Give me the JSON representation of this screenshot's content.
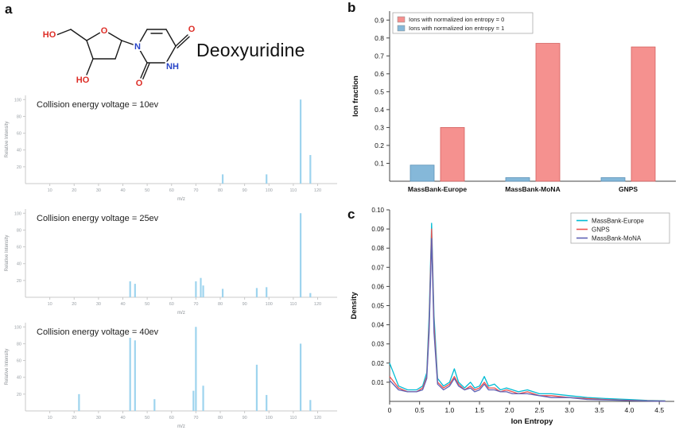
{
  "figure": {
    "panel_a_label": "a",
    "panel_b_label": "b",
    "panel_c_label": "c"
  },
  "molecule": {
    "name": "Deoxyuridine",
    "labels": {
      "ho_chain": "HO",
      "ho_ring": "HO",
      "ring_o": "O",
      "n1": "N",
      "nh": "NH",
      "o_top": "O",
      "o_bottom": "O"
    }
  },
  "chart_data": [
    {
      "id": "spectrum-10ev",
      "type": "bar",
      "variant": "mass-spectrum",
      "title": "Collision energy voltage =  10ev",
      "xlabel": "m/z",
      "ylabel": "Relative Intensity",
      "xlim": [
        0,
        128
      ],
      "ylim": [
        0,
        105
      ],
      "xticks": [
        10,
        20,
        30,
        40,
        50,
        60,
        70,
        80,
        90,
        100,
        110,
        120
      ],
      "yticks": [
        20,
        40,
        60,
        80,
        100
      ],
      "bar_color": "#9ed4ee",
      "peaks": [
        [
          81,
          11
        ],
        [
          99,
          11
        ],
        [
          113,
          100
        ],
        [
          117,
          34
        ]
      ]
    },
    {
      "id": "spectrum-25ev",
      "type": "bar",
      "variant": "mass-spectrum",
      "title": "Collision energy voltage =  25ev",
      "xlabel": "m/z",
      "ylabel": "Relative Intensity",
      "xlim": [
        0,
        128
      ],
      "ylim": [
        0,
        105
      ],
      "xticks": [
        10,
        20,
        30,
        40,
        50,
        60,
        70,
        80,
        90,
        100,
        110,
        120
      ],
      "yticks": [
        20,
        40,
        60,
        80,
        100
      ],
      "bar_color": "#9ed4ee",
      "peaks": [
        [
          43,
          19
        ],
        [
          45,
          16
        ],
        [
          70,
          19
        ],
        [
          72,
          23
        ],
        [
          73,
          14
        ],
        [
          81,
          10
        ],
        [
          95,
          11
        ],
        [
          99,
          12
        ],
        [
          113,
          100
        ],
        [
          117,
          5
        ]
      ]
    },
    {
      "id": "spectrum-40ev",
      "type": "bar",
      "variant": "mass-spectrum",
      "title": "Collision energy voltage =  40ev",
      "xlabel": "m/z",
      "ylabel": "Relative Intensity",
      "xlim": [
        0,
        128
      ],
      "ylim": [
        0,
        105
      ],
      "xticks": [
        10,
        20,
        30,
        40,
        50,
        60,
        70,
        80,
        90,
        100,
        110,
        120
      ],
      "yticks": [
        20,
        40,
        60,
        80,
        100
      ],
      "bar_color": "#9ed4ee",
      "peaks": [
        [
          22,
          20
        ],
        [
          43,
          87
        ],
        [
          45,
          84
        ],
        [
          53,
          14
        ],
        [
          69,
          24
        ],
        [
          70,
          100
        ],
        [
          73,
          30
        ],
        [
          95,
          55
        ],
        [
          99,
          19
        ],
        [
          113,
          80
        ],
        [
          117,
          13
        ]
      ]
    },
    {
      "id": "ion-fraction-bar",
      "type": "bar",
      "variant": "grouped-bar",
      "categories": [
        "MassBank-Europe",
        "MassBank-MoNA",
        "GNPS"
      ],
      "series": [
        {
          "name": "Ions with normalized ion entropy = 1",
          "color": "#85b8d9",
          "edge": "#5d93b8",
          "values": [
            0.09,
            0.02,
            0.02
          ]
        },
        {
          "name": "Ions with normalized ion entropy = 0",
          "color": "#f5918f",
          "edge": "#d4605e",
          "values": [
            0.3,
            0.77,
            0.75
          ]
        }
      ],
      "legend": [
        {
          "label": "Ions with normalized ion entropy = 0",
          "color": "#f5918f"
        },
        {
          "label": "Ions with normalized ion entropy = 1",
          "color": "#85b8d9"
        }
      ],
      "ylabel": "Ion fraction",
      "ylim": [
        0,
        0.95
      ],
      "yticks": [
        0.1,
        0.2,
        0.3,
        0.4,
        0.5,
        0.6,
        0.7,
        0.8,
        0.9
      ],
      "legend_position": "top-left",
      "grid": false
    },
    {
      "id": "ion-entropy-density",
      "type": "line",
      "variant": "density",
      "xlabel": "Ion Entropy",
      "ylabel": "Density",
      "xlim": [
        0,
        4.75
      ],
      "ylim": [
        0,
        0.1
      ],
      "xticks": [
        0,
        0.5,
        1.0,
        1.5,
        2.0,
        2.5,
        3.0,
        3.5,
        4.0,
        4.5
      ],
      "yticks": [
        0.01,
        0.02,
        0.03,
        0.04,
        0.05,
        0.06,
        0.07,
        0.08,
        0.09,
        0.1
      ],
      "legend_position": "top-right",
      "grid": false,
      "series": [
        {
          "name": "MassBank-Europe",
          "color": "#00bcd4",
          "points": [
            [
              0,
              0.02
            ],
            [
              0.15,
              0.008
            ],
            [
              0.3,
              0.006
            ],
            [
              0.45,
              0.006
            ],
            [
              0.55,
              0.008
            ],
            [
              0.62,
              0.015
            ],
            [
              0.66,
              0.045
            ],
            [
              0.7,
              0.093
            ],
            [
              0.74,
              0.045
            ],
            [
              0.8,
              0.012
            ],
            [
              0.9,
              0.008
            ],
            [
              1.0,
              0.01
            ],
            [
              1.08,
              0.017
            ],
            [
              1.15,
              0.01
            ],
            [
              1.25,
              0.007
            ],
            [
              1.35,
              0.01
            ],
            [
              1.42,
              0.007
            ],
            [
              1.5,
              0.008
            ],
            [
              1.58,
              0.013
            ],
            [
              1.65,
              0.008
            ],
            [
              1.75,
              0.009
            ],
            [
              1.85,
              0.006
            ],
            [
              1.95,
              0.007
            ],
            [
              2.05,
              0.006
            ],
            [
              2.15,
              0.005
            ],
            [
              2.3,
              0.006
            ],
            [
              2.5,
              0.004
            ],
            [
              2.7,
              0.004
            ],
            [
              3.0,
              0.003
            ],
            [
              3.3,
              0.002
            ],
            [
              3.6,
              0.0015
            ],
            [
              4.0,
              0.001
            ],
            [
              4.3,
              0.0005
            ],
            [
              4.6,
              0.0003
            ]
          ]
        },
        {
          "name": "GNPS",
          "color": "#ef5350",
          "points": [
            [
              0,
              0.013
            ],
            [
              0.15,
              0.007
            ],
            [
              0.3,
              0.005
            ],
            [
              0.45,
              0.005
            ],
            [
              0.55,
              0.007
            ],
            [
              0.62,
              0.013
            ],
            [
              0.66,
              0.04
            ],
            [
              0.7,
              0.09
            ],
            [
              0.74,
              0.04
            ],
            [
              0.8,
              0.01
            ],
            [
              0.9,
              0.007
            ],
            [
              1.0,
              0.009
            ],
            [
              1.08,
              0.013
            ],
            [
              1.15,
              0.009
            ],
            [
              1.25,
              0.006
            ],
            [
              1.35,
              0.008
            ],
            [
              1.42,
              0.006
            ],
            [
              1.5,
              0.007
            ],
            [
              1.58,
              0.01
            ],
            [
              1.65,
              0.007
            ],
            [
              1.75,
              0.007
            ],
            [
              1.85,
              0.005
            ],
            [
              1.95,
              0.006
            ],
            [
              2.05,
              0.005
            ],
            [
              2.15,
              0.004
            ],
            [
              2.3,
              0.005
            ],
            [
              2.5,
              0.003
            ],
            [
              2.7,
              0.003
            ],
            [
              3.0,
              0.002
            ],
            [
              3.3,
              0.0015
            ],
            [
              3.6,
              0.001
            ],
            [
              4.0,
              0.0005
            ],
            [
              4.3,
              0.0003
            ],
            [
              4.6,
              0.0002
            ]
          ]
        },
        {
          "name": "MassBank-MoNA",
          "color": "#5e62b5",
          "points": [
            [
              0,
              0.011
            ],
            [
              0.15,
              0.006
            ],
            [
              0.3,
              0.005
            ],
            [
              0.45,
              0.005
            ],
            [
              0.55,
              0.006
            ],
            [
              0.62,
              0.012
            ],
            [
              0.66,
              0.036
            ],
            [
              0.7,
              0.085
            ],
            [
              0.74,
              0.036
            ],
            [
              0.8,
              0.009
            ],
            [
              0.9,
              0.006
            ],
            [
              1.0,
              0.008
            ],
            [
              1.08,
              0.012
            ],
            [
              1.15,
              0.008
            ],
            [
              1.25,
              0.006
            ],
            [
              1.35,
              0.007
            ],
            [
              1.42,
              0.005
            ],
            [
              1.5,
              0.006
            ],
            [
              1.58,
              0.009
            ],
            [
              1.65,
              0.006
            ],
            [
              1.75,
              0.006
            ],
            [
              1.85,
              0.005
            ],
            [
              1.95,
              0.005
            ],
            [
              2.05,
              0.004
            ],
            [
              2.15,
              0.004
            ],
            [
              2.3,
              0.004
            ],
            [
              2.5,
              0.003
            ],
            [
              2.7,
              0.002
            ],
            [
              3.0,
              0.002
            ],
            [
              3.3,
              0.001
            ],
            [
              3.6,
              0.0008
            ],
            [
              4.0,
              0.0004
            ],
            [
              4.3,
              0.0002
            ],
            [
              4.6,
              0.0001
            ]
          ]
        }
      ]
    }
  ]
}
